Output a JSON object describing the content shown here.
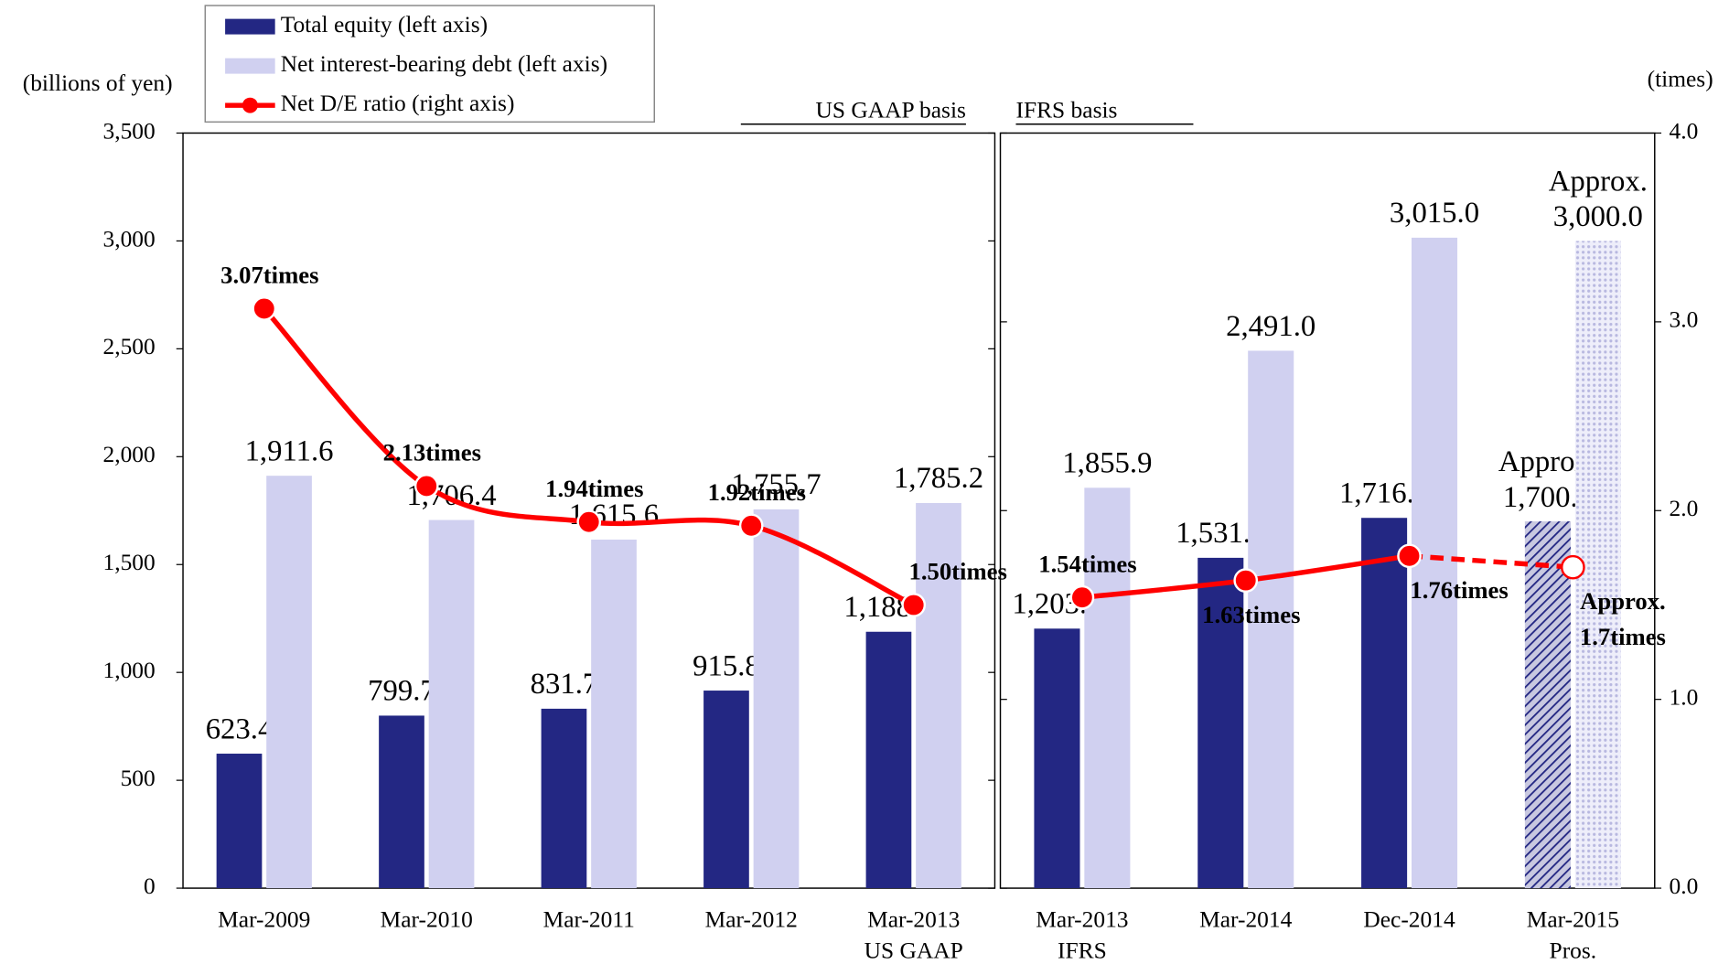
{
  "chart_data": {
    "type": "bar-line",
    "y_label": "(billions of yen)",
    "y2_label": "(times)",
    "categories": [
      [
        "Mar-2009"
      ],
      [
        "Mar-2010"
      ],
      [
        "Mar-2011"
      ],
      [
        "Mar-2012"
      ],
      [
        "Mar-2013",
        "US GAAP"
      ],
      [
        "Mar-2013",
        "IFRS"
      ],
      [
        "Mar-2014"
      ],
      [
        "Dec-2014"
      ],
      [
        "Mar-2015",
        "Pros."
      ]
    ],
    "panels": [
      {
        "label": "US GAAP basis",
        "start": 0,
        "end": 4
      },
      {
        "label": "IFRS basis",
        "start": 5,
        "end": 8
      }
    ],
    "projected": [
      false,
      false,
      false,
      false,
      false,
      false,
      false,
      false,
      true
    ],
    "series": [
      {
        "name": "Total equity (left axis)",
        "type": "bar",
        "color": "#232783",
        "values": [
          623.4,
          799.7,
          831.7,
          915.8,
          1188.4,
          1203.0,
          1531.2,
          1716.3,
          1700.0
        ],
        "value_labels": [
          "623.4",
          "799.7",
          "831.7",
          "915.8",
          "1,188.4",
          "1,203.0",
          "1,531.2",
          "1,716.3",
          [
            "Approx.",
            "1,700.0"
          ]
        ]
      },
      {
        "name": "Net interest-bearing debt (left axis)",
        "type": "bar",
        "color": "#d0d0f0",
        "values": [
          1911.6,
          1706.4,
          1615.6,
          1755.7,
          1785.2,
          1855.9,
          2491.0,
          3015.0,
          3000.0
        ],
        "value_labels": [
          "1,911.6",
          "1,706.4",
          "1,615.6",
          "1,755.7",
          "1,785.2",
          "1,855.9",
          "2,491.0",
          "3,015.0",
          [
            "Approx.",
            "3,000.0"
          ]
        ]
      },
      {
        "name": "Net D/E ratio (right axis)",
        "type": "line",
        "axis": "y2",
        "color": "#ff0000",
        "values": [
          3.07,
          2.13,
          1.94,
          1.92,
          1.5,
          1.54,
          1.63,
          1.76,
          1.7
        ],
        "value_labels": [
          "3.07times",
          "2.13times",
          "1.94times",
          "1.92times",
          "1.50times",
          "1.54times",
          "1.63times",
          "1.76times",
          [
            "Approx.",
            "1.7times"
          ]
        ]
      }
    ],
    "ylim": [
      0,
      3500
    ],
    "yticks": [
      0,
      500,
      {
        "value": 1000,
        "label": "1,000"
      },
      {
        "value": 1500,
        "label": "1,500"
      },
      {
        "value": 2000,
        "label": "2,000"
      },
      {
        "value": 2500,
        "label": "2,500"
      },
      {
        "value": 3000,
        "label": "3,000"
      },
      {
        "value": 3500,
        "label": "3,500"
      }
    ],
    "y2lim": [
      0,
      4
    ],
    "y2ticks": [
      {
        "value": 0,
        "label": "0.0"
      },
      {
        "value": 1,
        "label": "1.0"
      },
      {
        "value": 2,
        "label": "2.0"
      },
      {
        "value": 3,
        "label": "3.0"
      },
      {
        "value": 4,
        "label": "4.0"
      }
    ],
    "grid": false,
    "legend": "top-left"
  }
}
